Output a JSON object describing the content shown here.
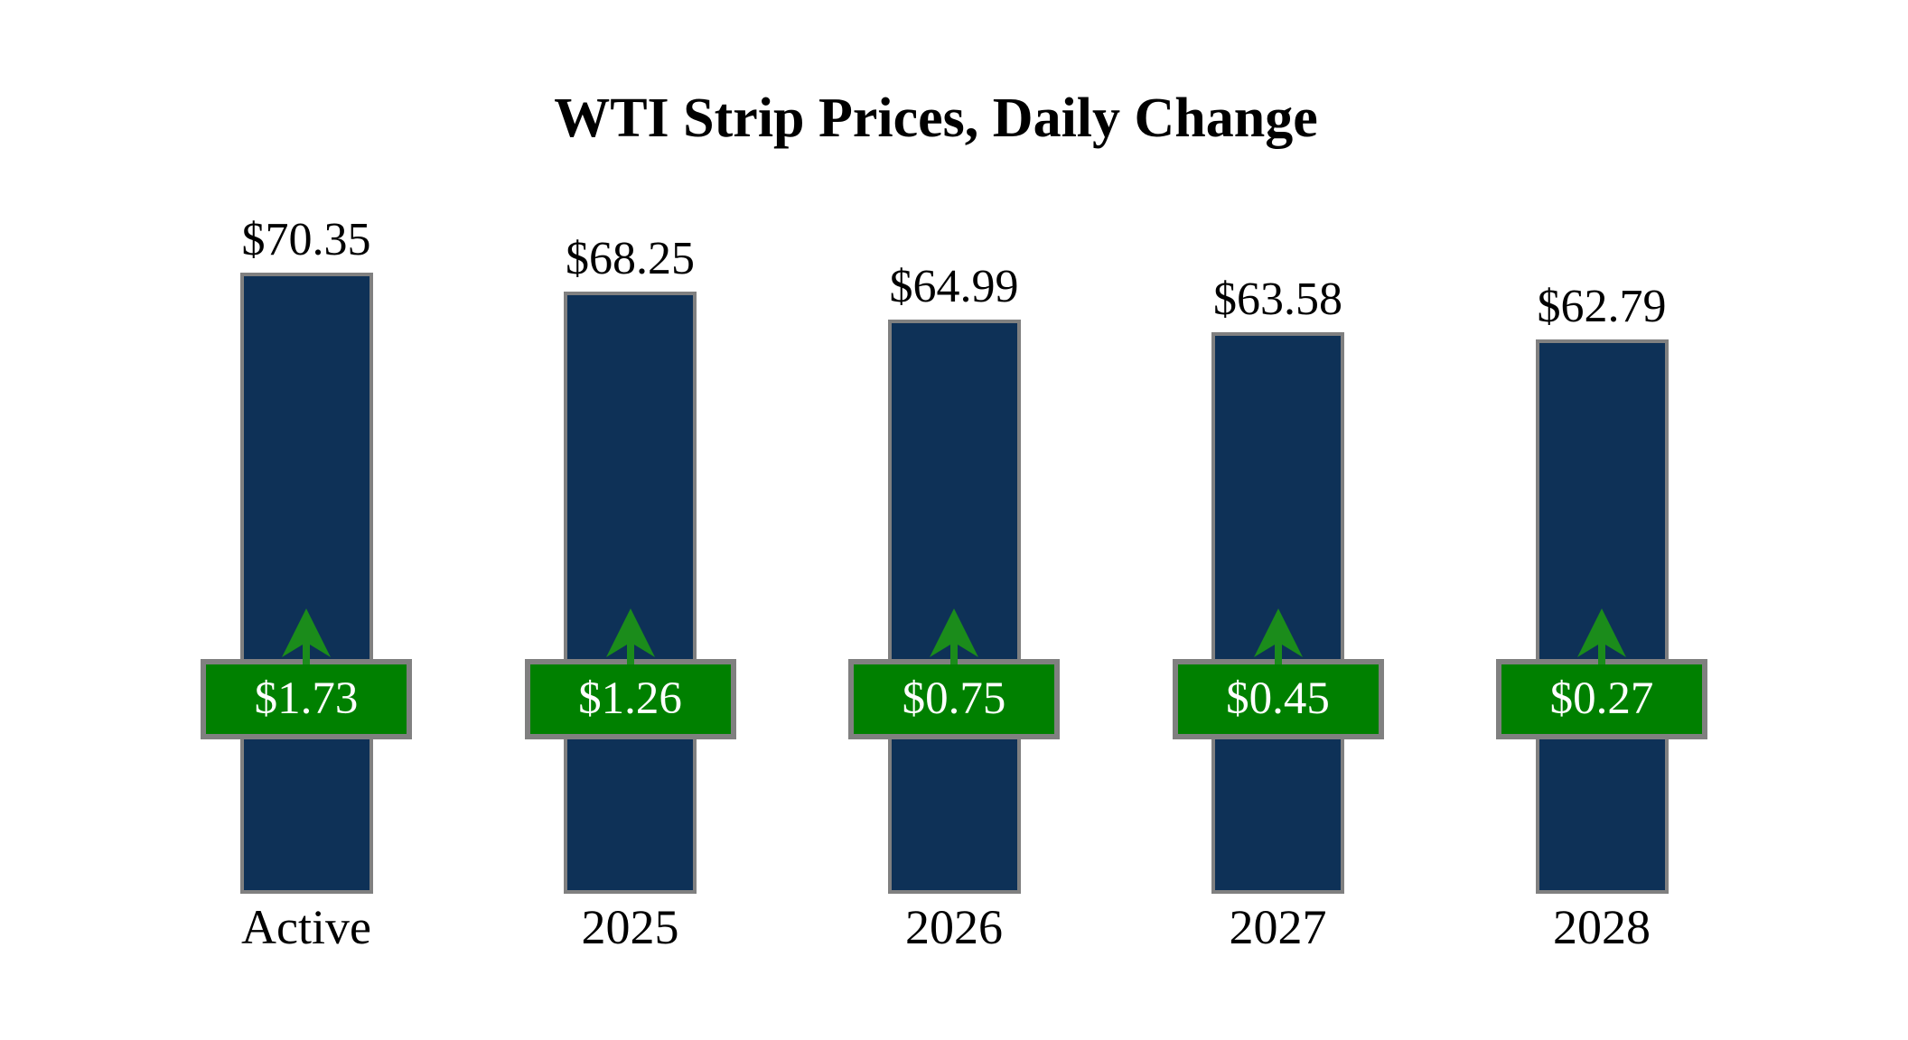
{
  "chart_data": {
    "type": "bar",
    "title": "WTI Strip Prices, Daily Change",
    "categories": [
      "Active",
      "2025",
      "2026",
      "2027",
      "2028"
    ],
    "series": [
      {
        "name": "WTI strip price ($)",
        "values": [
          70.35,
          68.25,
          64.99,
          63.58,
          62.79
        ]
      },
      {
        "name": "Daily change ($)",
        "values": [
          1.73,
          1.26,
          0.75,
          0.45,
          0.27
        ]
      }
    ],
    "items": [
      {
        "category": "Active",
        "price": 70.35,
        "price_label": "$70.35",
        "change": 1.73,
        "change_label": "$1.73",
        "direction": "up"
      },
      {
        "category": "2025",
        "price": 68.25,
        "price_label": "$68.25",
        "change": 1.26,
        "change_label": "$1.26",
        "direction": "up"
      },
      {
        "category": "2026",
        "price": 64.99,
        "price_label": "$64.99",
        "change": 0.75,
        "change_label": "$0.75",
        "direction": "up"
      },
      {
        "category": "2027",
        "price": 63.58,
        "price_label": "$63.58",
        "change": 0.45,
        "change_label": "$0.45",
        "direction": "up"
      },
      {
        "category": "2028",
        "price": 62.79,
        "price_label": "$62.79",
        "change": 0.27,
        "change_label": "$0.27",
        "direction": "up"
      }
    ],
    "xlabel": "",
    "ylabel": "",
    "ylim": [
      0,
      72
    ],
    "grid": false,
    "legend": "none",
    "value_labels_position": "above-bar",
    "change_badge_position": "mid-bar",
    "direction_icon": "up-arrow-icon"
  },
  "colors": {
    "background": "#FFFFFF",
    "bar_fill": "#0E3157",
    "bar_border": "#808080",
    "badge_fill": "#008000",
    "badge_border": "#808080",
    "arrow_green": "#1B8C1B",
    "title_text": "#000000",
    "label_text": "#000000",
    "badge_text": "#FFFFFF"
  }
}
